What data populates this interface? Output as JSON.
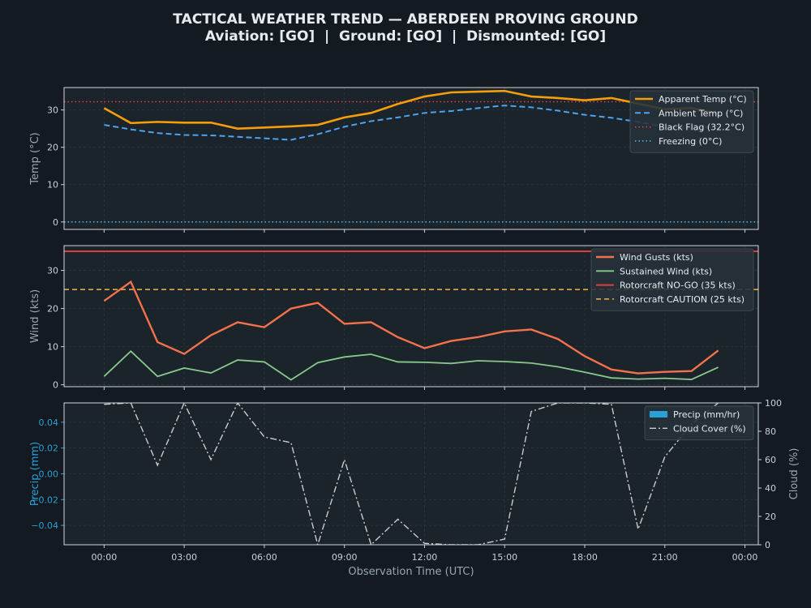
{
  "title": "TACTICAL WEATHER TREND — ABERDEEN PROVING GROUND",
  "subtitle": "Aviation: [GO]  |  Ground: [GO]  |  Dismounted: [GO]",
  "colors": {
    "background": "#131a21",
    "panel": "#1b232b",
    "grid": "#2a3a40",
    "frame": "#d0d6dc",
    "apparent_temp": "#f59e0b",
    "ambient_temp": "#4da3ee",
    "black_flag": "#e24444",
    "freezing": "#4fb8ee",
    "gusts": "#f4724a",
    "sustained": "#86c98a",
    "nogo": "#e03c3c",
    "caution": "#f0b64c",
    "precip": "#2a9fd6",
    "cloud": "#c8cdd2",
    "axis_label": "#98a6b2"
  },
  "chart_data": [
    {
      "type": "line",
      "id": "temp",
      "ylabel": "Temp (°C)",
      "ylim": [
        -2,
        36
      ],
      "yticks": [
        0,
        10,
        20,
        30
      ],
      "grid": true,
      "legend_position": "top-right",
      "series": [
        {
          "name": "Apparent Temp (°C)",
          "x": [
            0,
            1,
            2,
            3,
            4,
            5,
            6,
            7,
            8,
            9,
            10,
            11,
            12,
            13,
            14,
            15,
            16,
            17,
            18,
            19,
            20,
            21,
            22,
            23
          ],
          "values": [
            30.5,
            26.5,
            26.8,
            26.6,
            26.6,
            25.0,
            25.3,
            25.6,
            26.0,
            28.0,
            29.2,
            31.6,
            33.6,
            34.7,
            34.9,
            35.1,
            33.6,
            33.2,
            32.6,
            33.2,
            31.7,
            30.2,
            30.5,
            29.0
          ]
        },
        {
          "name": "Ambient Temp (°C)",
          "x": [
            0,
            1,
            2,
            3,
            4,
            5,
            6,
            7,
            8,
            9,
            10,
            11,
            12,
            13,
            14,
            15,
            16,
            17,
            18,
            19,
            20,
            21,
            22,
            23
          ],
          "values": [
            26.0,
            24.8,
            23.8,
            23.3,
            23.2,
            22.8,
            22.4,
            22.0,
            23.5,
            25.5,
            27.0,
            28.0,
            29.2,
            29.7,
            30.5,
            31.2,
            30.7,
            29.8,
            28.7,
            27.9,
            26.8,
            25.5,
            25.0,
            25.7
          ]
        }
      ],
      "reference_lines": [
        {
          "name": "Black Flag (32.2°C)",
          "value": 32.2
        },
        {
          "name": "Freezing (0°C)",
          "value": 0
        }
      ]
    },
    {
      "type": "line",
      "id": "wind",
      "ylabel": "Wind (kts)",
      "ylim": [
        -0.5,
        36.5
      ],
      "yticks": [
        0,
        10,
        20,
        30
      ],
      "grid": true,
      "legend_position": "top-right",
      "series": [
        {
          "name": "Wind Gusts (kts)",
          "x": [
            0,
            1,
            2,
            3,
            4,
            5,
            6,
            7,
            8,
            9,
            10,
            11,
            12,
            13,
            14,
            15,
            16,
            17,
            18,
            19,
            20,
            21,
            22,
            23
          ],
          "values": [
            22.0,
            27.0,
            11.2,
            8.1,
            13.0,
            16.4,
            15.1,
            20.0,
            21.5,
            16.0,
            16.4,
            12.5,
            9.6,
            11.5,
            12.5,
            14.0,
            14.5,
            12.0,
            7.5,
            4.0,
            3.0,
            3.4,
            3.6,
            9.0
          ]
        },
        {
          "name": "Sustained Wind (kts)",
          "x": [
            0,
            1,
            2,
            3,
            4,
            5,
            6,
            7,
            8,
            9,
            10,
            11,
            12,
            13,
            14,
            15,
            16,
            17,
            18,
            19,
            20,
            21,
            22,
            23
          ],
          "values": [
            2.2,
            8.8,
            2.2,
            4.4,
            3.1,
            6.5,
            6.0,
            1.3,
            5.8,
            7.3,
            8.0,
            6.0,
            5.9,
            5.6,
            6.3,
            6.1,
            5.7,
            4.7,
            3.3,
            1.8,
            1.5,
            1.7,
            1.4,
            4.6
          ]
        }
      ],
      "reference_lines": [
        {
          "name": "Rotorcraft NO-GO (35 kts)",
          "value": 35
        },
        {
          "name": "Rotorcraft CAUTION (25 kts)",
          "value": 25
        }
      ]
    },
    {
      "type": "bar+line",
      "id": "precip",
      "ylabel": "Precip (mm)",
      "ylabel_right": "Cloud (%)",
      "ylim": [
        -0.055,
        0.055
      ],
      "yticks": [
        -0.04,
        -0.02,
        0.0,
        0.02,
        0.04
      ],
      "ylim_right": [
        0,
        100
      ],
      "yticks_right": [
        0,
        20,
        40,
        60,
        80,
        100
      ],
      "xlabel": "Observation Time (UTC)",
      "xticks": [
        "00:00",
        "03:00",
        "06:00",
        "09:00",
        "12:00",
        "15:00",
        "18:00",
        "21:00",
        "00:00"
      ],
      "grid": true,
      "legend_position": "top-right",
      "series": [
        {
          "name": "Precip (mm/hr)",
          "x": [
            0,
            1,
            2,
            3,
            4,
            5,
            6,
            7,
            8,
            9,
            10,
            11,
            12,
            13,
            14,
            15,
            16,
            17,
            18,
            19,
            20,
            21,
            22,
            23
          ],
          "values": [
            0,
            0,
            0,
            0,
            0,
            0,
            0,
            0,
            0,
            0,
            0,
            0,
            0,
            0,
            0,
            0,
            0,
            0,
            0,
            0,
            0,
            0,
            0,
            0
          ]
        },
        {
          "name": "Cloud Cover (%)",
          "x": [
            0,
            1,
            2,
            3,
            4,
            5,
            6,
            7,
            8,
            9,
            10,
            11,
            12,
            13,
            14,
            15,
            16,
            17,
            18,
            19,
            20,
            21,
            22,
            23
          ],
          "values": [
            99,
            100,
            56,
            100,
            60,
            100,
            76,
            72,
            0,
            60,
            0,
            18,
            1,
            0,
            0,
            4,
            94,
            100,
            100,
            99,
            11,
            62,
            85,
            100
          ]
        }
      ]
    }
  ]
}
